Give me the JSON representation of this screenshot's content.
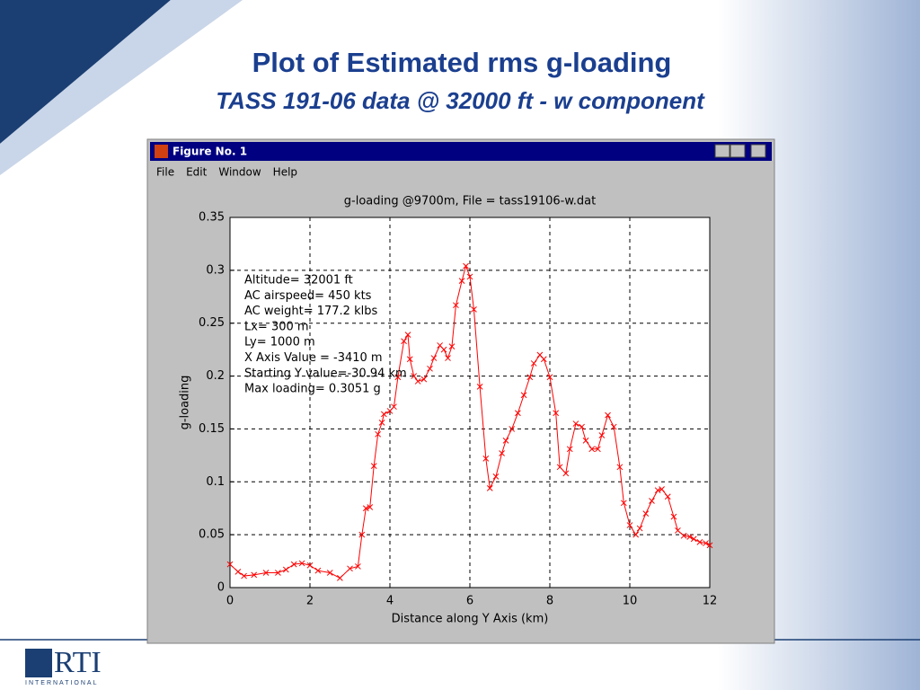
{
  "slide": {
    "title": "Plot of Estimated rms g-loading",
    "subtitle": "TASS 191-06 data @ 32000 ft  - w component"
  },
  "window": {
    "title": "Figure No. 1",
    "menu": [
      "File",
      "Edit",
      "Window",
      "Help"
    ]
  },
  "logo": {
    "name": "RTI",
    "tagline": "INTERNATIONAL"
  },
  "chart_data": {
    "type": "line",
    "title": "g-loading @9700m, File = tass19106-w.dat",
    "x_label": "Distance along Y Axis (km)",
    "y_label": "g-loading",
    "annotations": [
      "Altitude= 32001 ft",
      "AC airspeed= 450 kts",
      "AC weight= 177.2 klbs",
      "Lx= 300 m",
      "Ly= 1000 m",
      "X Axis Value = -3410 m",
      "Starting Y value=-30.94 km",
      "Max loading= 0.3051 g"
    ],
    "color": "#ff0000",
    "marker": "x",
    "grid": true,
    "xlim": [
      0,
      12
    ],
    "xticks": [
      0,
      2,
      4,
      6,
      8,
      10,
      12
    ],
    "ylim": [
      0,
      0.35
    ],
    "yticks": [
      0,
      0.05,
      0.1,
      0.15,
      0.2,
      0.25,
      0.3,
      0.35
    ],
    "x": [
      0,
      0.2,
      0.35,
      0.6,
      0.9,
      1.2,
      1.4,
      1.6,
      1.8,
      2.0,
      2.2,
      2.5,
      2.75,
      3.0,
      3.2,
      3.3,
      3.4,
      3.5,
      3.6,
      3.7,
      3.8,
      3.85,
      4.0,
      4.1,
      4.2,
      4.35,
      4.45,
      4.5,
      4.6,
      4.7,
      4.85,
      5.0,
      5.1,
      5.25,
      5.35,
      5.45,
      5.55,
      5.65,
      5.8,
      5.9,
      6.0,
      6.1,
      6.25,
      6.4,
      6.5,
      6.65,
      6.8,
      6.9,
      7.05,
      7.2,
      7.35,
      7.5,
      7.6,
      7.75,
      7.85,
      8.0,
      8.15,
      8.25,
      8.4,
      8.5,
      8.65,
      8.8,
      8.9,
      9.05,
      9.2,
      9.3,
      9.45,
      9.6,
      9.75,
      9.85,
      10.0,
      10.15,
      10.25,
      10.4,
      10.55,
      10.7,
      10.8,
      10.95,
      11.1,
      11.2,
      11.35,
      11.5,
      11.6,
      11.75,
      11.9,
      12
    ],
    "values": [
      0.022,
      0.015,
      0.011,
      0.012,
      0.014,
      0.014,
      0.017,
      0.022,
      0.023,
      0.021,
      0.016,
      0.014,
      0.009,
      0.018,
      0.02,
      0.05,
      0.075,
      0.076,
      0.115,
      0.145,
      0.156,
      0.164,
      0.167,
      0.171,
      0.199,
      0.233,
      0.239,
      0.216,
      0.2,
      0.195,
      0.197,
      0.207,
      0.217,
      0.229,
      0.225,
      0.217,
      0.228,
      0.267,
      0.29,
      0.304,
      0.294,
      0.263,
      0.19,
      0.122,
      0.094,
      0.105,
      0.127,
      0.139,
      0.15,
      0.165,
      0.182,
      0.199,
      0.212,
      0.22,
      0.216,
      0.199,
      0.165,
      0.114,
      0.108,
      0.131,
      0.155,
      0.152,
      0.139,
      0.131,
      0.131,
      0.144,
      0.163,
      0.152,
      0.114,
      0.08,
      0.059,
      0.05,
      0.056,
      0.07,
      0.082,
      0.092,
      0.093,
      0.086,
      0.067,
      0.054,
      0.049,
      0.048,
      0.046,
      0.043,
      0.042,
      0.04
    ]
  }
}
